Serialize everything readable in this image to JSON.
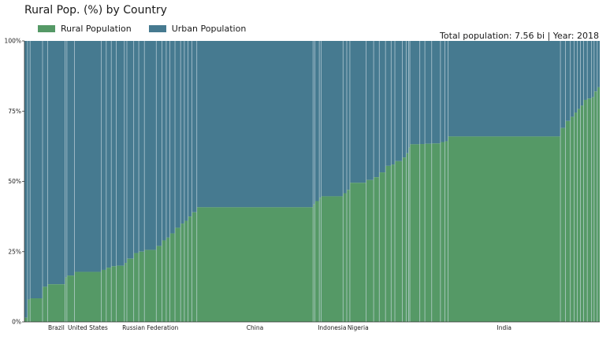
{
  "colors": {
    "rural": "#559966",
    "urban": "#467a90",
    "divider": "#cfdde5"
  },
  "chart_data": {
    "type": "bar",
    "subtype": "variable-width stacked (marimekko)",
    "title": "Rural Pop. (%) by Country",
    "summary": "Total population: 7.56 bi | Year: 2018",
    "legend": [
      "Rural Population",
      "Urban Population"
    ],
    "legend_position": "top-left",
    "y_ticks": [
      "0%",
      "25%",
      "50%",
      "75%",
      "100%"
    ],
    "ylim": [
      0,
      100
    ],
    "x_unit": "cumulative share of world population (%)",
    "grid": false,
    "labeled_countries": [
      {
        "name": "Brazil",
        "pop_share": 2.8,
        "rural_pct": 13.4
      },
      {
        "name": "United States",
        "pop_share": 4.3,
        "rural_pct": 17.8
      },
      {
        "name": "Russian Federation",
        "pop_share": 1.9,
        "rural_pct": 25.6
      },
      {
        "name": "China",
        "pop_share": 18.6,
        "rural_pct": 40.8
      },
      {
        "name": "Indonesia",
        "pop_share": 3.5,
        "rural_pct": 44.7
      },
      {
        "name": "Nigeria",
        "pop_share": 2.6,
        "rural_pct": 49.5
      },
      {
        "name": "India",
        "pop_share": 18.0,
        "rural_pct": 66.0
      }
    ],
    "segments": [
      [
        0.5,
        1.5
      ],
      [
        0.4,
        8.0
      ],
      [
        2.0,
        8.4
      ],
      [
        0.8,
        12.5
      ],
      [
        2.8,
        13.4,
        "Brazil"
      ],
      [
        0.3,
        15.8
      ],
      [
        1.2,
        16.5
      ],
      [
        4.3,
        17.8,
        "United States"
      ],
      [
        0.8,
        18.5
      ],
      [
        0.8,
        19.3
      ],
      [
        0.8,
        19.8
      ],
      [
        1.3,
        20.0
      ],
      [
        0.4,
        21.0
      ],
      [
        1.1,
        22.5
      ],
      [
        0.8,
        24.5
      ],
      [
        0.9,
        25.0
      ],
      [
        1.9,
        25.6,
        "Russian Federation"
      ],
      [
        0.9,
        27.0
      ],
      [
        0.7,
        29.0
      ],
      [
        0.6,
        30.0
      ],
      [
        0.8,
        31.5
      ],
      [
        0.9,
        33.5
      ],
      [
        0.6,
        35.0
      ],
      [
        0.6,
        36.0
      ],
      [
        0.6,
        37.5
      ],
      [
        0.8,
        39.0
      ],
      [
        18.6,
        40.8,
        "China"
      ],
      [
        0.3,
        41.8
      ],
      [
        0.7,
        43.0
      ],
      [
        0.3,
        44.2
      ],
      [
        3.5,
        44.7,
        "Indonesia"
      ],
      [
        0.6,
        45.8
      ],
      [
        0.5,
        47.0
      ],
      [
        2.6,
        49.5,
        "Nigeria"
      ],
      [
        1.2,
        50.5
      ],
      [
        0.9,
        51.5
      ],
      [
        1.0,
        53.2
      ],
      [
        0.9,
        55.5
      ],
      [
        0.6,
        56.0
      ],
      [
        1.2,
        57.2
      ],
      [
        0.6,
        58.5
      ],
      [
        0.4,
        60.0
      ],
      [
        0.2,
        62.0
      ],
      [
        1.6,
        63.2
      ],
      [
        0.8,
        63.3
      ],
      [
        1.1,
        63.4
      ],
      [
        1.4,
        63.5
      ],
      [
        0.7,
        64.0
      ],
      [
        0.5,
        64.3
      ],
      [
        18.0,
        66.0,
        "India"
      ],
      [
        0.8,
        69.0
      ],
      [
        0.8,
        71.5
      ],
      [
        0.6,
        73.0
      ],
      [
        0.5,
        74.5
      ],
      [
        0.5,
        75.8
      ],
      [
        0.5,
        77.0
      ],
      [
        0.6,
        79.0
      ],
      [
        0.7,
        79.5
      ],
      [
        0.4,
        80.0
      ],
      [
        0.5,
        82.0
      ],
      [
        0.4,
        83.5
      ]
    ]
  }
}
